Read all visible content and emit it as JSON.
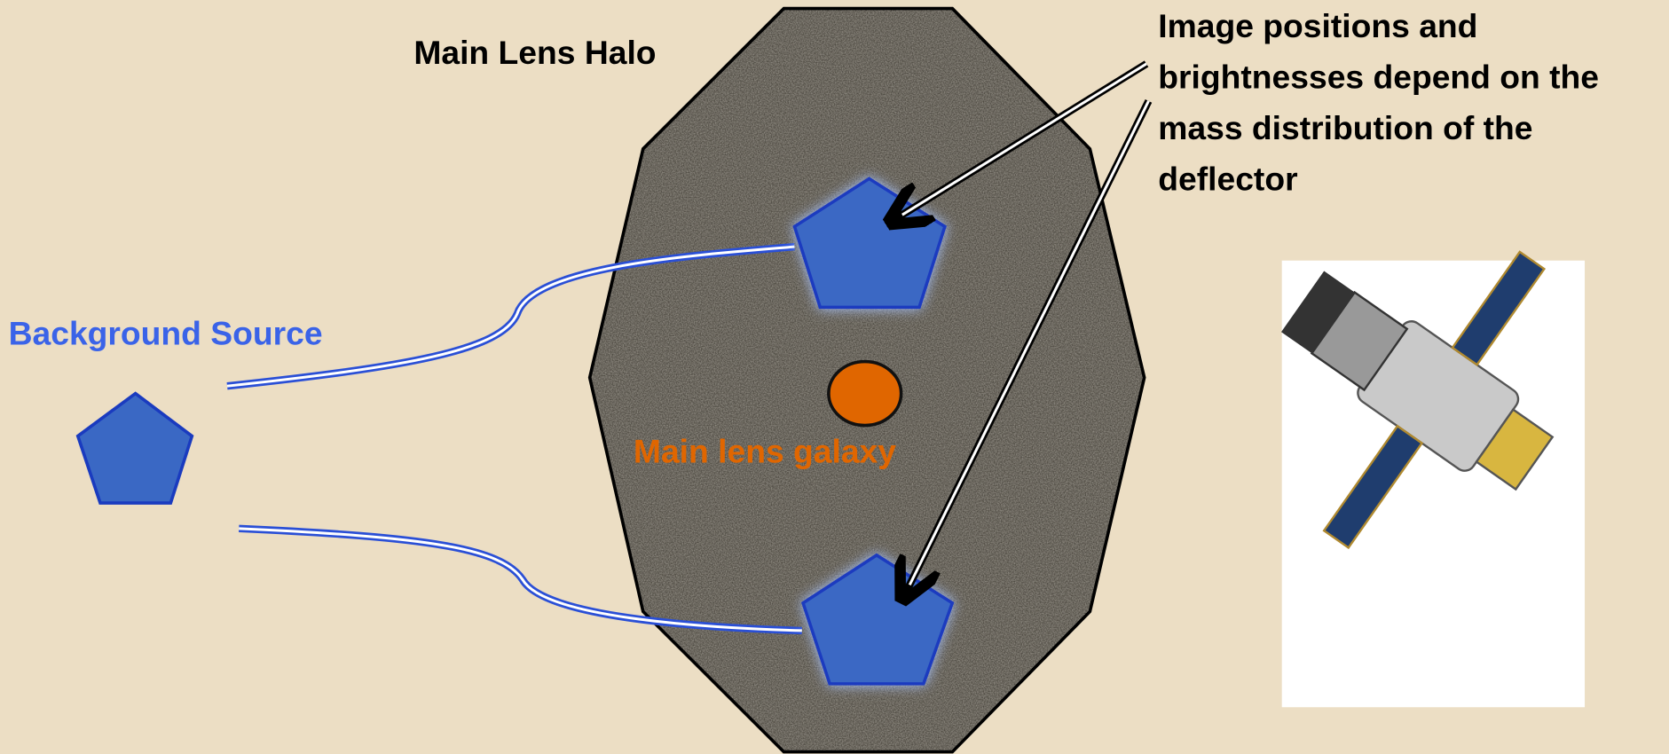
{
  "labels": {
    "halo": "Main Lens Halo",
    "source": "Background Source",
    "galaxy": "Main lens galaxy"
  },
  "annotation": {
    "lines": [
      "Image positions and",
      "brightnesses depend on the",
      "mass distribution of the",
      "deflector"
    ]
  }
}
